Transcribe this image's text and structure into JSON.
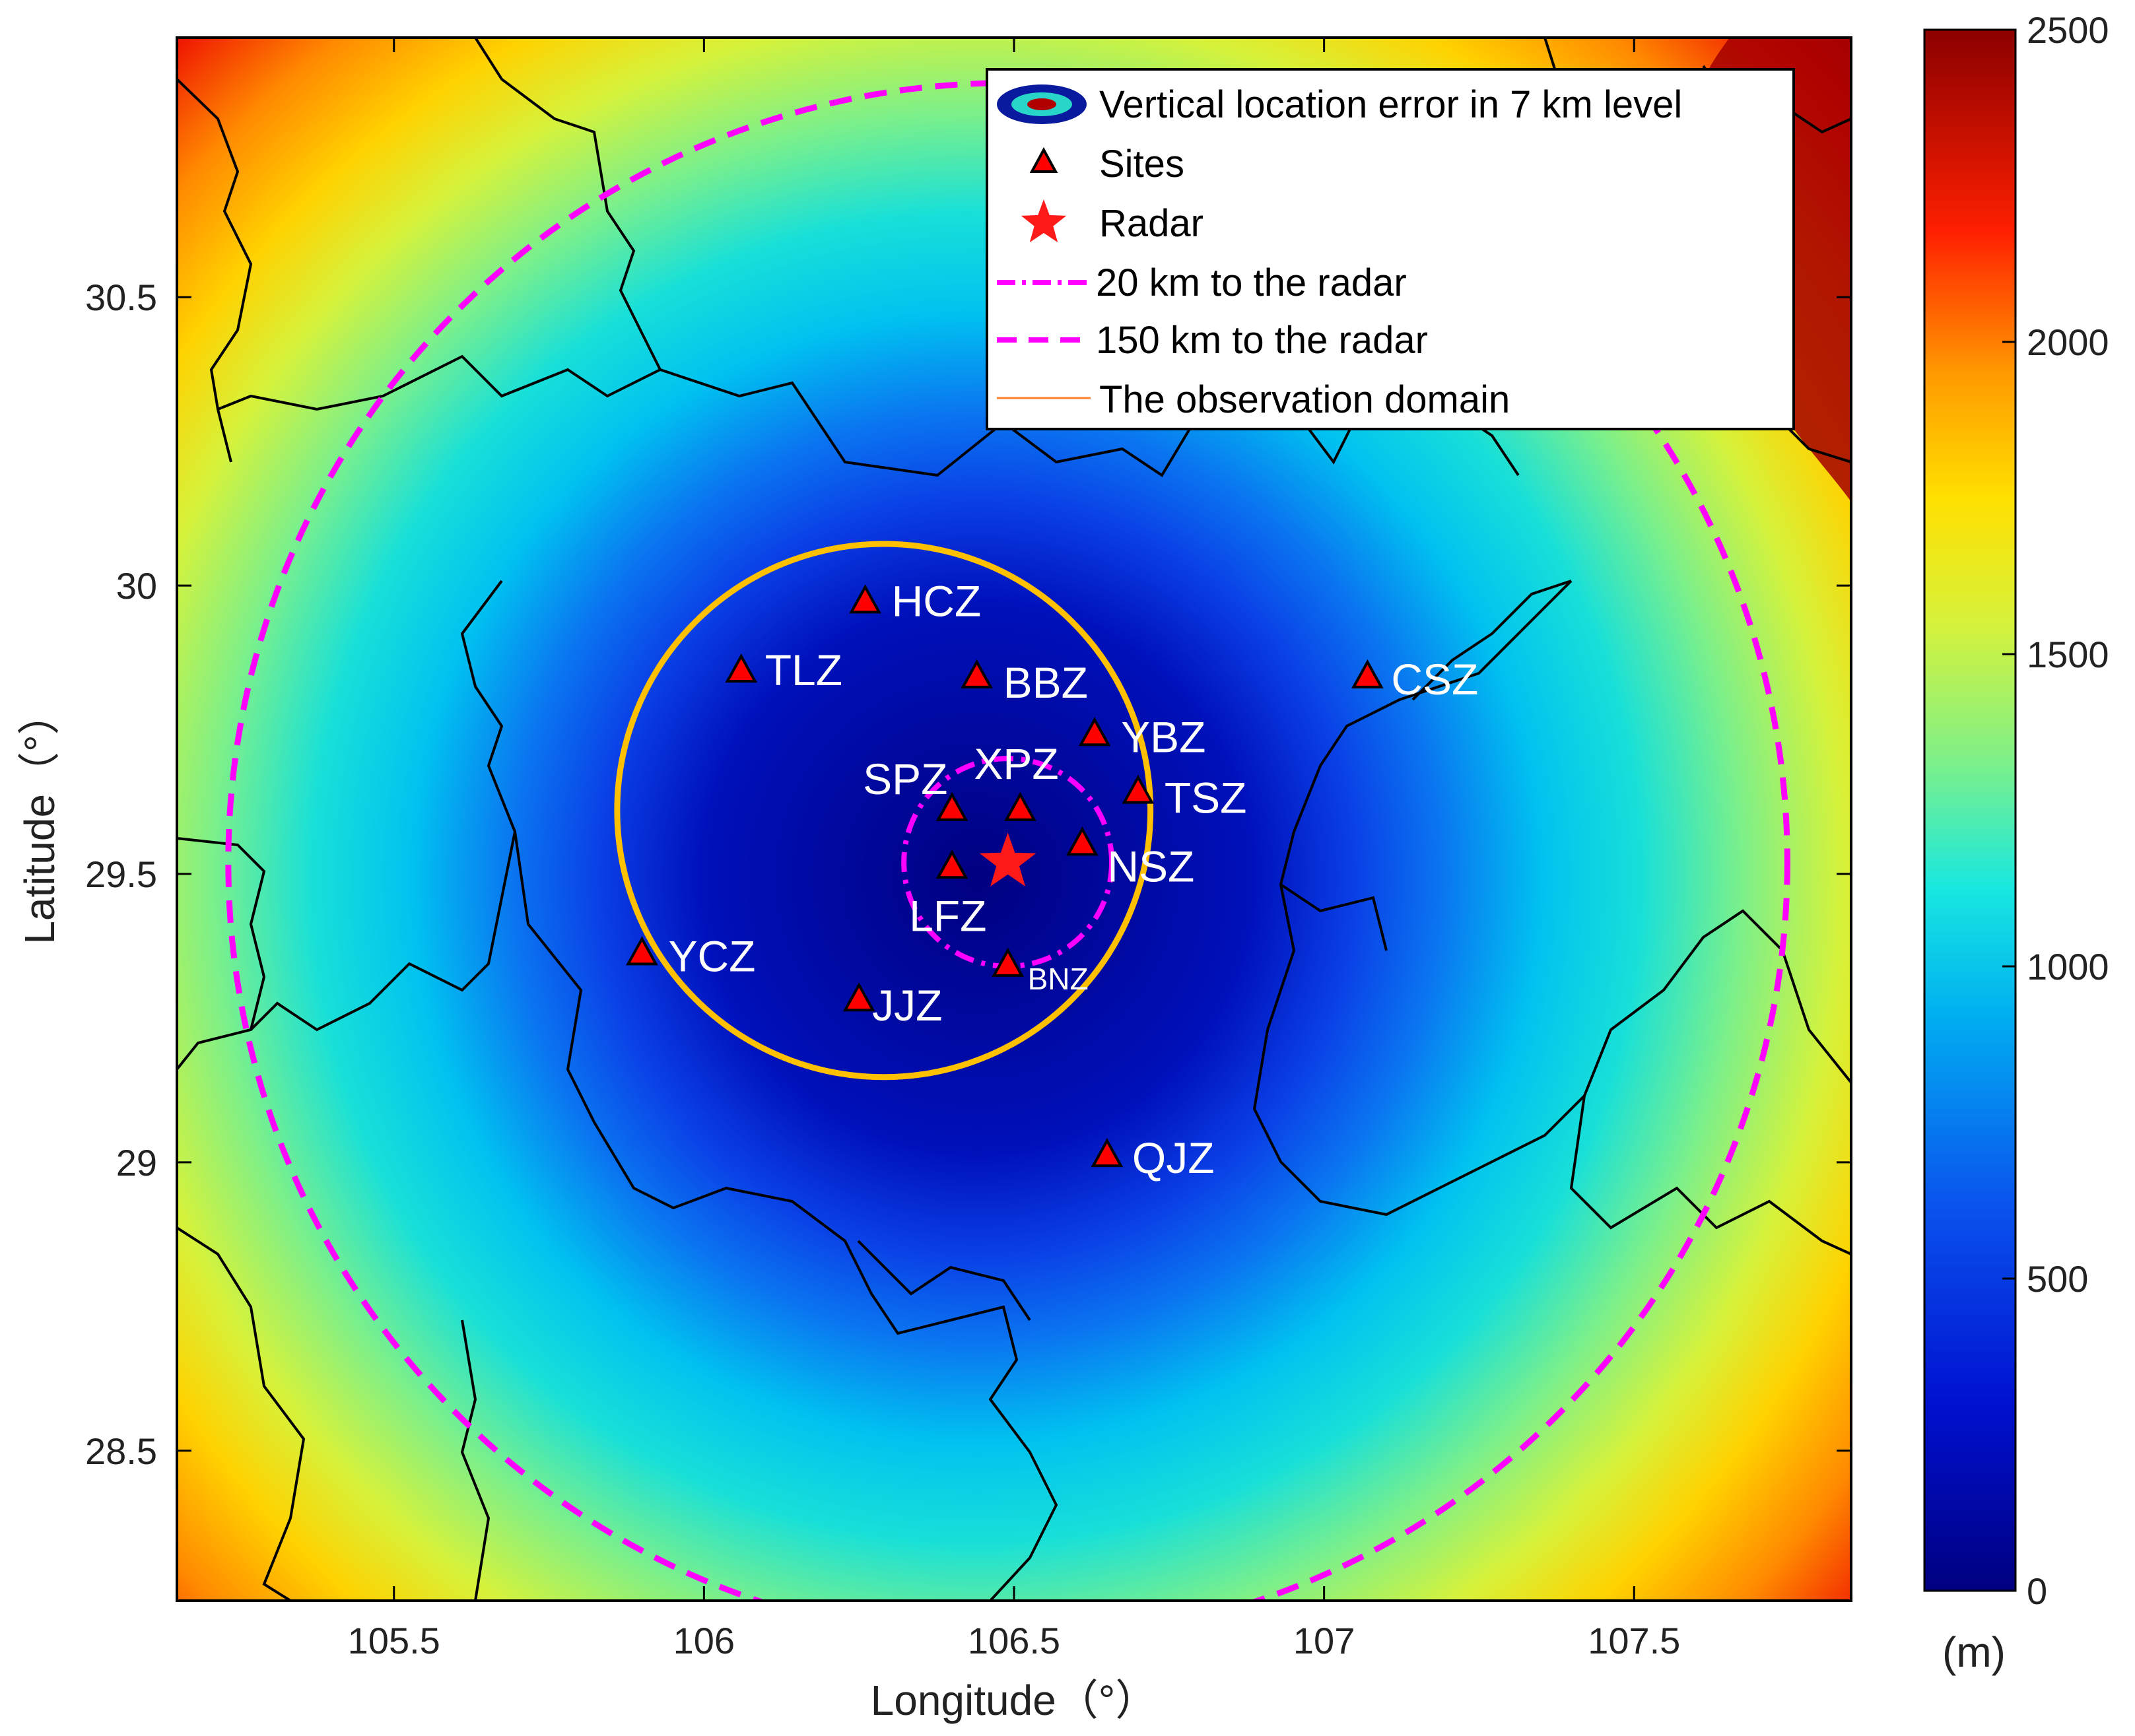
{
  "map": {
    "axes": {
      "xlabel": "Longitude（°）",
      "ylabel": "Latitude（°）",
      "xlim": [
        105.15,
        107.85
      ],
      "ylim": [
        28.24,
        30.95
      ],
      "xticks": [
        "105.5",
        "106",
        "106.5",
        "107",
        "107.5"
      ],
      "yticks": [
        "28.5",
        "29",
        "29.5",
        "30",
        "30.5"
      ]
    },
    "colorbar": {
      "ticks": [
        "0",
        "500",
        "1000",
        "1500",
        "2000",
        "2500"
      ],
      "unit": "(m)",
      "range": [
        0,
        2500
      ]
    },
    "legend": {
      "placement": "top-right",
      "items": [
        {
          "label": "Vertical location error in 7 km level",
          "symbol": "ellipse"
        },
        {
          "label": "Sites",
          "symbol": "triangle"
        },
        {
          "label": "Radar",
          "symbol": "star"
        },
        {
          "label": "20 km to the radar",
          "symbol": "dash-dot"
        },
        {
          "label": "150 km to the radar",
          "symbol": "dash"
        },
        {
          "label": "The observation domain",
          "symbol": "line"
        }
      ]
    },
    "radar": {
      "lon": 106.49,
      "lat": 29.52
    },
    "sites": [
      {
        "name": "HCZ",
        "lon": 106.26,
        "lat": 29.97
      },
      {
        "name": "TLZ",
        "lon": 106.06,
        "lat": 29.85
      },
      {
        "name": "BBZ",
        "lon": 106.44,
        "lat": 29.84
      },
      {
        "name": "YBZ",
        "lon": 106.63,
        "lat": 29.74
      },
      {
        "name": "CSZ",
        "lon": 107.07,
        "lat": 29.84
      },
      {
        "name": "SPZ",
        "lon": 106.4,
        "lat": 29.61
      },
      {
        "name": "XPZ",
        "lon": 106.51,
        "lat": 29.61
      },
      {
        "name": "TSZ",
        "lon": 106.7,
        "lat": 29.64
      },
      {
        "name": "NSZ",
        "lon": 106.61,
        "lat": 29.55
      },
      {
        "name": "LFZ",
        "lon": 106.4,
        "lat": 29.51
      },
      {
        "name": "YCZ",
        "lon": 105.9,
        "lat": 29.36
      },
      {
        "name": "BNZ",
        "lon": 106.49,
        "lat": 29.34
      },
      {
        "name": "JJZ",
        "lon": 106.25,
        "lat": 29.28
      },
      {
        "name": "QJZ",
        "lon": 106.65,
        "lat": 29.01
      }
    ],
    "colors": {
      "triangle_fill": "#ff0000",
      "radar_star": "#ff1a1a",
      "range_circles": "#ff00ff",
      "observation_domain": "#ffc000",
      "boundaries": "#000000"
    }
  }
}
